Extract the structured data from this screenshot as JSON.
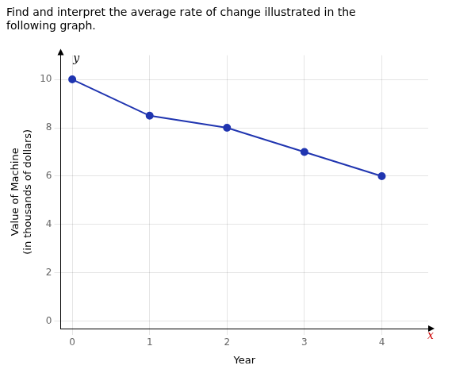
{
  "chart_data": {
    "type": "line",
    "title": [
      "Find and interpret the average rate of change illustrated in the",
      "following graph."
    ],
    "xlabel": "Year",
    "ylabel": [
      "Value of Machine",
      "(in thousands of dollars)"
    ],
    "x": [
      0,
      1,
      2,
      3,
      4
    ],
    "values": [
      10,
      8.5,
      8,
      7,
      6
    ],
    "color": "#2035b0",
    "marker": "circle",
    "xlim": [
      -0.15,
      4.6
    ],
    "ylim": [
      -0.3,
      11.0
    ],
    "xticks": [
      0,
      1,
      2,
      3,
      4
    ],
    "yticks": [
      0,
      2,
      4,
      6,
      8,
      10
    ],
    "grid": true,
    "annotations": [
      {
        "text": "y",
        "x": -0.05,
        "y": 10.6
      },
      {
        "text": "x",
        "x": 4.55,
        "y": -0.35,
        "color": "#cc0000"
      }
    ]
  }
}
